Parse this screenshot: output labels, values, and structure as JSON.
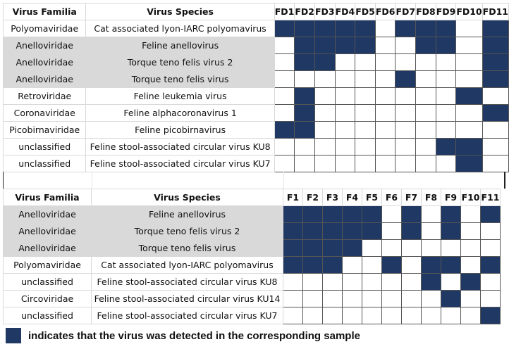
{
  "table1": {
    "headers": {
      "family": "Virus Familia",
      "species": "Virus Species",
      "samples": [
        "FD1",
        "FD2",
        "FD3",
        "FD4",
        "FD5",
        "FD6",
        "FD7",
        "FD8",
        "FD9",
        "FD10",
        "FD11"
      ]
    },
    "rows": [
      {
        "family": "Polyomaviridae",
        "species": "Cat associated lyon-IARC polyomavirus",
        "shaded": false,
        "detected": [
          1,
          1,
          1,
          1,
          1,
          0,
          1,
          1,
          1,
          0,
          1
        ]
      },
      {
        "family": "Anelloviridae",
        "species": "Feline anellovirus",
        "shaded": true,
        "detected": [
          0,
          1,
          1,
          1,
          1,
          0,
          0,
          1,
          1,
          0,
          1
        ]
      },
      {
        "family": "Anelloviridae",
        "species": "Torque teno felis virus 2",
        "shaded": true,
        "detected": [
          0,
          1,
          1,
          0,
          0,
          0,
          0,
          0,
          0,
          0,
          1
        ]
      },
      {
        "family": "Anelloviridae",
        "species": "Torque teno felis virus",
        "shaded": true,
        "detected": [
          0,
          0,
          0,
          0,
          0,
          0,
          1,
          0,
          0,
          0,
          1
        ]
      },
      {
        "family": "Retroviridae",
        "species": "Feline leukemia virus",
        "shaded": false,
        "detected": [
          0,
          1,
          0,
          0,
          0,
          0,
          0,
          0,
          0,
          1,
          0
        ]
      },
      {
        "family": "Coronaviridae",
        "species": "Feline alphacoronavirus 1",
        "shaded": false,
        "detected": [
          0,
          1,
          0,
          0,
          0,
          0,
          0,
          0,
          0,
          0,
          1
        ]
      },
      {
        "family": "Picobirnaviridae",
        "species": "Feline picobirnavirus",
        "shaded": false,
        "detected": [
          1,
          1,
          0,
          0,
          0,
          0,
          0,
          0,
          0,
          0,
          0
        ]
      },
      {
        "family": "unclassified",
        "species": "Feline stool-associated circular virus KU8",
        "shaded": false,
        "detected": [
          0,
          0,
          0,
          0,
          0,
          0,
          0,
          0,
          1,
          1,
          0
        ]
      },
      {
        "family": "unclassified",
        "species": "Feline stool-associated circular virus KU7",
        "shaded": false,
        "detected": [
          0,
          0,
          0,
          0,
          0,
          0,
          0,
          0,
          0,
          1,
          0
        ]
      }
    ]
  },
  "table2": {
    "headers": {
      "family": "Virus Familia",
      "species": "Virus Species",
      "samples": [
        "F1",
        "F2",
        "F3",
        "F4",
        "F5",
        "F6",
        "F7",
        "F8",
        "F9",
        "F10",
        "F11"
      ]
    },
    "rows": [
      {
        "family": "Anelloviridae",
        "species": "Feline anellovirus",
        "shaded": true,
        "detected": [
          1,
          1,
          1,
          1,
          1,
          0,
          1,
          0,
          1,
          0,
          1
        ]
      },
      {
        "family": "Anelloviridae",
        "species": "Torque teno felis virus 2",
        "shaded": true,
        "detected": [
          1,
          1,
          1,
          1,
          1,
          0,
          1,
          0,
          1,
          0,
          0
        ]
      },
      {
        "family": "Anelloviridae",
        "species": "Torque teno felis virus",
        "shaded": true,
        "detected": [
          1,
          1,
          1,
          1,
          0,
          0,
          0,
          0,
          0,
          0,
          0
        ]
      },
      {
        "family": "Polyomaviridae",
        "species": "Cat associated lyon-IARC polyomavirus",
        "shaded": false,
        "detected": [
          1,
          1,
          1,
          0,
          0,
          1,
          0,
          1,
          1,
          0,
          1
        ]
      },
      {
        "family": "unclassified",
        "species": "Feline stool-associated circular virus KU8",
        "shaded": false,
        "detected": [
          0,
          0,
          0,
          0,
          0,
          0,
          0,
          1,
          0,
          1,
          0
        ]
      },
      {
        "family": "Circoviridae",
        "species": "Feline stool-associated circular virus KU14",
        "shaded": false,
        "detected": [
          0,
          0,
          0,
          0,
          0,
          0,
          0,
          0,
          1,
          0,
          0
        ]
      },
      {
        "family": "unclassified",
        "species": "Feline stool-associated circular virus KU7",
        "shaded": false,
        "detected": [
          0,
          0,
          0,
          0,
          0,
          0,
          0,
          0,
          0,
          0,
          1
        ]
      }
    ]
  },
  "legend": {
    "text": "indicates that the virus was detected in the corresponding sample"
  },
  "colors": {
    "detected": "#1f3864",
    "shaded_row": "#d9d9d9"
  }
}
